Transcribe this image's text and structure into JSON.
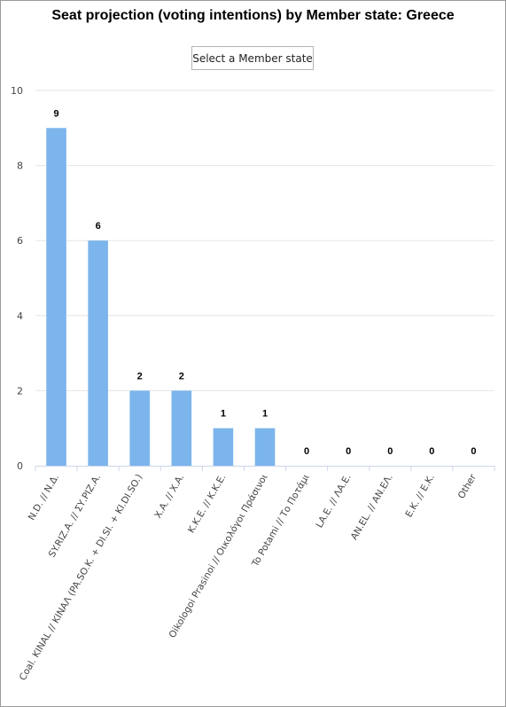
{
  "controls": {
    "select_label": "Select a Member state"
  },
  "colors": {
    "bar": "#7cb5ec",
    "grid": "#e6e6e6",
    "axis": "#ccd6eb"
  },
  "chart_data": {
    "type": "bar",
    "title": "Seat projection (voting intentions) by Member state: Greece",
    "xlabel": "",
    "ylabel": "",
    "ylim": [
      0,
      10
    ],
    "yticks": [
      0,
      2,
      4,
      6,
      8,
      10
    ],
    "grid": true,
    "categories": [
      "N.D. // Ν.Δ.",
      "SY.RIZ.A. // ΣΥ.ΡΙΖ.Α.",
      "Coal. KINAL // ΚΙΝΑΛ (PA.SO.K. + DI.SI. + KI.DI.SO.)",
      "X.A. // X.A.",
      "K.K.E. // K.K.E.",
      "Oikologoi Prasinoi // Οικολόγοι Πράσινοι",
      "To Potami // Το Ποτάμι",
      "LA.E. // ΛΑ.Ε.",
      "AN.EL. // AN.ΕΛ.",
      "E.K. // E.K.",
      "Other"
    ],
    "values": [
      9,
      6,
      2,
      2,
      1,
      1,
      0,
      0,
      0,
      0,
      0
    ]
  }
}
